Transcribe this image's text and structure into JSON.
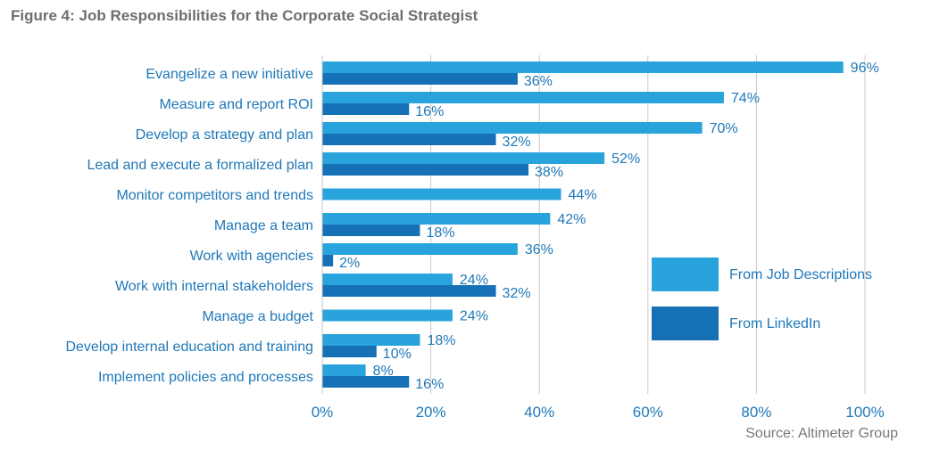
{
  "title": "Figure 4: Job Responsibilities for the Corporate Social Strategist",
  "source": "Source: Altimeter Group",
  "colors": {
    "from_job_descriptions": "#29a3dc",
    "from_linkedin": "#1570b6",
    "text": "#1f78b8",
    "gridline": "#c8c8c8"
  },
  "chart_data": {
    "type": "bar",
    "orientation": "horizontal",
    "title": "Figure 4: Job Responsibilities for the Corporate Social Strategist",
    "categories": [
      "Evangelize a new initiative",
      "Measure and report ROI",
      "Develop a strategy and plan",
      "Lead and execute a formalized plan",
      "Monitor competitors and trends",
      "Manage a team",
      "Work with agencies",
      "Work with internal stakeholders",
      "Manage a budget",
      "Develop internal education and training",
      "Implement policies and processes"
    ],
    "series": [
      {
        "name": "From Job Descriptions",
        "values": [
          96,
          74,
          70,
          52,
          44,
          42,
          36,
          24,
          24,
          18,
          8
        ],
        "labels": [
          "96%",
          "74%",
          "70%",
          "52%",
          "44%",
          "42%",
          "36%",
          "24%",
          "24%",
          "18%",
          "8%"
        ]
      },
      {
        "name": "From LinkedIn",
        "values": [
          36,
          16,
          32,
          38,
          null,
          18,
          2,
          32,
          null,
          10,
          16
        ],
        "labels": [
          "36%",
          "16%",
          "32%",
          "38%",
          null,
          "18%",
          "2%",
          "32%",
          null,
          "10%",
          "16%"
        ]
      }
    ],
    "xlim": [
      0,
      100
    ],
    "xticks": [
      0,
      20,
      40,
      60,
      80,
      100
    ],
    "xtick_labels": [
      "0%",
      "20%",
      "40%",
      "60%",
      "80%",
      "100%"
    ],
    "grid": true,
    "legend_position": "right"
  }
}
